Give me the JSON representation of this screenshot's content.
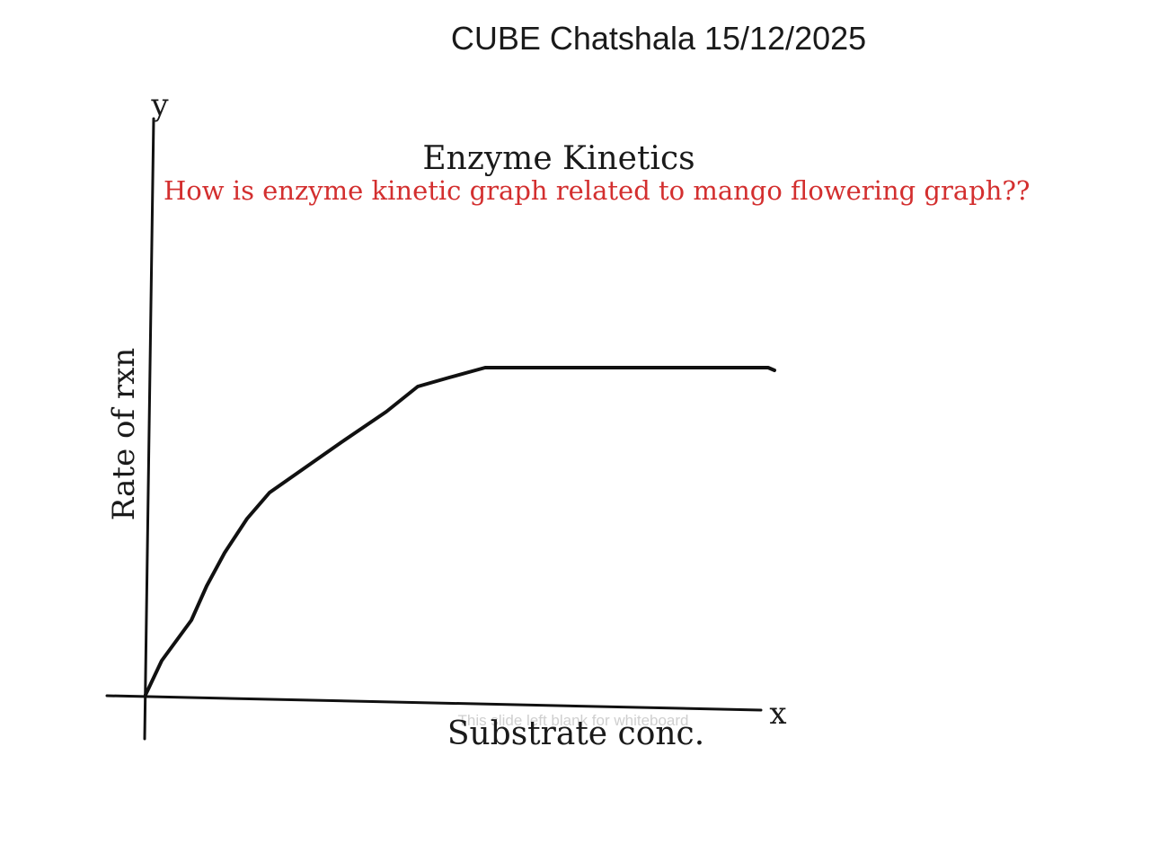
{
  "header": {
    "title": "CUBE Chatshala 15/12/2025"
  },
  "whiteboard": {
    "heading": "Enzyme Kinetics",
    "question": "How is enzyme kinetic graph related to mango flowering graph??",
    "y_letter": "y",
    "x_letter": "x",
    "y_label": "Rate of rxn",
    "x_label": "Substrate conc.",
    "note": "This slide left blank for whiteboard"
  }
}
